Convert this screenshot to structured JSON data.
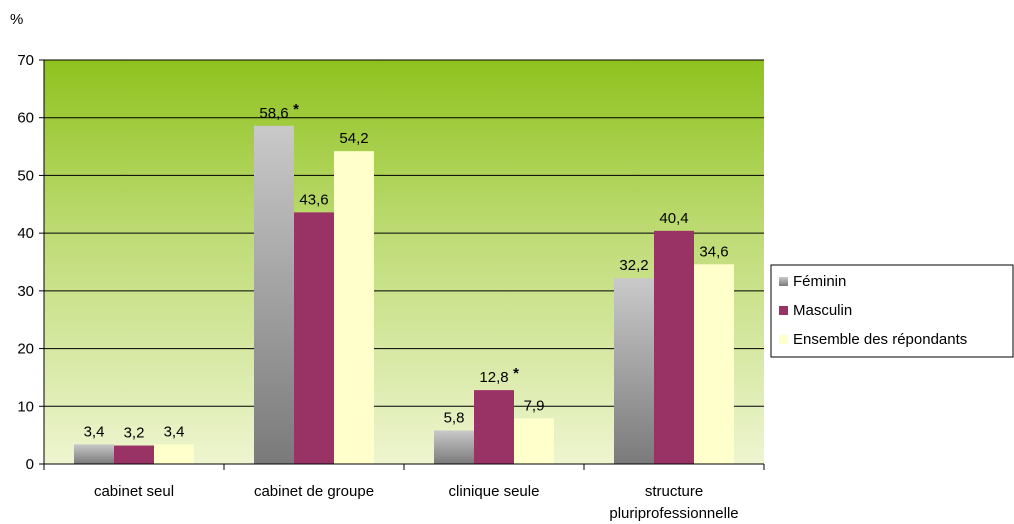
{
  "chart_data": {
    "type": "bar",
    "title": "",
    "ylabel": "%",
    "xlabel": "",
    "ylim": [
      0,
      70
    ],
    "yticks": [
      0,
      10,
      20,
      30,
      40,
      50,
      60,
      70
    ],
    "grid": true,
    "legend_position": "right",
    "categories": [
      "cabinet seul",
      "cabinet de groupe",
      "clinique seule",
      "structure pluriprofessionnelle"
    ],
    "series": [
      {
        "name": "Féminin",
        "values": [
          3.4,
          58.6,
          5.8,
          32.2
        ],
        "labels": [
          "3,4",
          "58,6",
          "5,8",
          "32,2"
        ],
        "color": "#a6a6a6"
      },
      {
        "name": "Masculin",
        "values": [
          3.2,
          43.6,
          12.8,
          40.4
        ],
        "labels": [
          "3,2",
          "43,6",
          "12,8",
          "40,4"
        ],
        "color": "#993366"
      },
      {
        "name": "Ensemble des répondants",
        "values": [
          3.4,
          54.2,
          7.9,
          34.6
        ],
        "labels": [
          "3,4",
          "54,2",
          "7,9",
          "34,6"
        ],
        "color": "#ffffcc"
      }
    ],
    "annotations": [
      {
        "series": 0,
        "category": 1,
        "text": "*"
      },
      {
        "series": 1,
        "category": 2,
        "text": "*"
      }
    ]
  }
}
